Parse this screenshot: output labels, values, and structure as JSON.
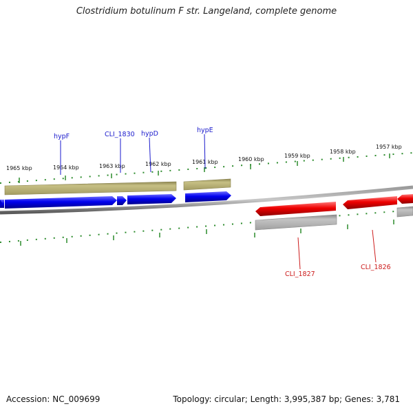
{
  "title": "Clostridium botulinum F str. Langeland, complete genome",
  "footer": {
    "accession": "Accession: NC_009699",
    "summary": "Topology: circular; Length: 3,995,387 bp; Genes: 3,781"
  },
  "ruler": {
    "labels": [
      "1965 kbp",
      "1964 kbp",
      "1963 kbp",
      "1962 kbp",
      "1961 kbp",
      "1960 kbp",
      "1959 kbp",
      "1958 kbp",
      "1957 kbp"
    ]
  },
  "gene_labels": {
    "hypF": "hypF",
    "cli1830": "CLI_1830",
    "hypD": "hypD",
    "hypE": "hypE",
    "cli1827": "CLI_1827",
    "cli1826": "CLI_1826"
  },
  "colors": {
    "forward_gene": "#0000ee",
    "reverse_gene": "#ee0000",
    "forward_feature": "#b8b070",
    "reverse_feature": "#b0b0b0",
    "ticks": "#2a8a2a",
    "backbone": "#808080",
    "forward_label": "#1a1acc",
    "reverse_label": "#cc1a1a"
  }
}
